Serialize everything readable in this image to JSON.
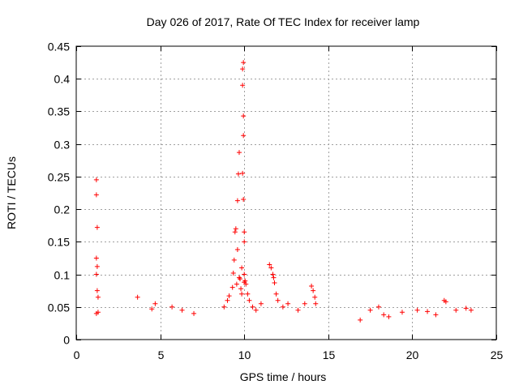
{
  "chart_data": {
    "type": "scatter",
    "title": "Day 026 of 2017, Rate Of TEC Index for receiver lamp",
    "xlabel": "GPS time / hours",
    "ylabel": "ROTI / TECUs",
    "xlim": [
      0,
      25
    ],
    "ylim": [
      0,
      0.45
    ],
    "xticks": [
      0,
      5,
      10,
      15,
      20,
      25
    ],
    "xtick_labels": [
      "0",
      "5",
      "10",
      "15",
      "20",
      "25"
    ],
    "yticks": [
      0,
      0.05,
      0.1,
      0.15,
      0.2,
      0.25,
      0.3,
      0.35,
      0.4,
      0.45
    ],
    "ytick_labels": [
      "0",
      "0.05",
      "0.1",
      "0.15",
      "0.2",
      "0.25",
      "0.3",
      "0.35",
      "0.4",
      "0.45"
    ],
    "grid": true,
    "marker": "+",
    "color": "#ff0000",
    "series": [
      {
        "name": "ROTI",
        "x": [
          1.2,
          1.2,
          1.25,
          1.2,
          1.25,
          1.2,
          1.25,
          1.3,
          1.2,
          1.3,
          3.65,
          4.5,
          4.7,
          5.7,
          6.3,
          7.0,
          8.8,
          9.0,
          9.1,
          9.3,
          9.35,
          9.4,
          9.45,
          9.5,
          9.55,
          9.6,
          9.6,
          9.65,
          9.7,
          9.7,
          9.75,
          9.8,
          9.85,
          9.85,
          9.9,
          9.9,
          9.9,
          9.95,
          9.95,
          9.95,
          9.95,
          10.0,
          10.0,
          10.0,
          10.0,
          10.05,
          10.1,
          10.2,
          10.3,
          10.5,
          10.7,
          11.0,
          11.5,
          11.6,
          11.7,
          11.75,
          11.8,
          11.9,
          12.0,
          12.3,
          12.6,
          13.2,
          13.6,
          14.0,
          14.1,
          14.2,
          14.25,
          16.9,
          17.5,
          18.0,
          18.3,
          18.6,
          19.4,
          20.3,
          20.9,
          21.4,
          21.9,
          22.0,
          22.6,
          23.2,
          23.5
        ],
        "y": [
          0.245,
          0.222,
          0.172,
          0.125,
          0.112,
          0.1,
          0.075,
          0.065,
          0.04,
          0.042,
          0.065,
          0.047,
          0.055,
          0.05,
          0.045,
          0.04,
          0.05,
          0.06,
          0.067,
          0.08,
          0.102,
          0.122,
          0.165,
          0.17,
          0.085,
          0.213,
          0.138,
          0.254,
          0.287,
          0.095,
          0.093,
          0.078,
          0.07,
          0.11,
          0.415,
          0.39,
          0.255,
          0.425,
          0.343,
          0.313,
          0.215,
          0.165,
          0.15,
          0.1,
          0.088,
          0.09,
          0.085,
          0.07,
          0.06,
          0.05,
          0.045,
          0.055,
          0.115,
          0.11,
          0.1,
          0.095,
          0.087,
          0.07,
          0.06,
          0.05,
          0.055,
          0.045,
          0.055,
          0.082,
          0.075,
          0.065,
          0.055,
          0.03,
          0.045,
          0.05,
          0.038,
          0.035,
          0.042,
          0.045,
          0.043,
          0.038,
          0.06,
          0.058,
          0.045,
          0.048,
          0.045
        ]
      }
    ]
  }
}
